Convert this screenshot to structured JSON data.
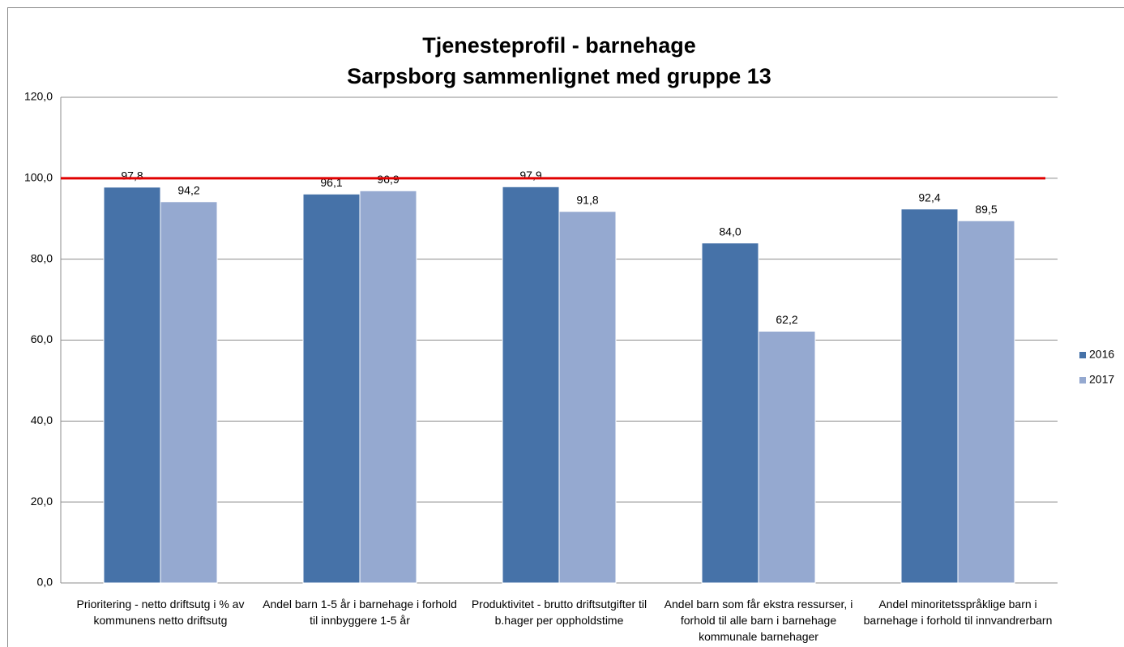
{
  "chart_data": {
    "type": "bar",
    "title": "Tjenesteprofil - barnehage",
    "subtitle": "Sarpsborg sammenlignet med gruppe 13",
    "categories": [
      "Prioritering - netto driftsutg i % av kommunens netto driftsutg",
      "Andel barn 1-5 år i barnehage i forhold til innbyggere 1-5 år",
      "Produktivitet - brutto driftsutgifter til b.hager per oppholdstime",
      "Andel barn som får ekstra ressurser, i forhold til alle barn i barnehage kommunale barnehager",
      "Andel minoritetsspråklige barn i barnehage i forhold til innvandrerbarn"
    ],
    "series": [
      {
        "name": "2016",
        "color": "#4672a8",
        "values": [
          97.8,
          96.1,
          97.9,
          84.0,
          92.4
        ],
        "value_labels": [
          "97,8",
          "96,1",
          "97,9",
          "84,0",
          "92,4"
        ]
      },
      {
        "name": "2017",
        "color": "#95a9d0",
        "values": [
          94.2,
          96.9,
          91.8,
          62.2,
          89.5
        ],
        "value_labels": [
          "94,2",
          "96,9",
          "91,8",
          "62,2",
          "89,5"
        ]
      }
    ],
    "ylim": [
      0,
      120
    ],
    "yticks": [
      {
        "value": 0,
        "label": "0,0"
      },
      {
        "value": 20,
        "label": "20,0"
      },
      {
        "value": 40,
        "label": "40,0"
      },
      {
        "value": 60,
        "label": "60,0"
      },
      {
        "value": 80,
        "label": "80,0"
      },
      {
        "value": 100,
        "label": "100,0"
      },
      {
        "value": 120,
        "label": "120,0"
      }
    ],
    "grid": true,
    "legend": "right",
    "reference_line": {
      "value": 100,
      "color": "#e00000"
    }
  }
}
